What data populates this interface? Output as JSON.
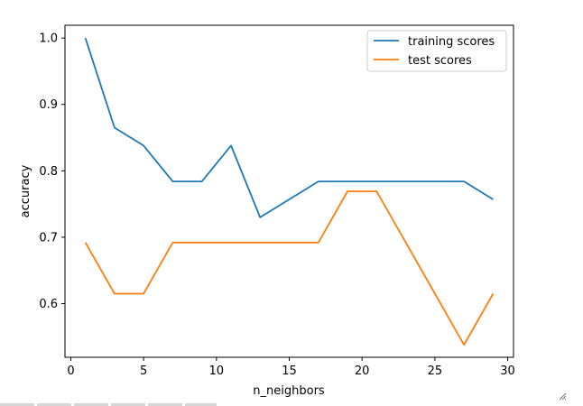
{
  "chart_data": {
    "type": "line",
    "x": [
      1,
      3,
      5,
      7,
      9,
      11,
      13,
      15,
      17,
      19,
      21,
      23,
      25,
      27,
      29
    ],
    "series": [
      {
        "name": "training scores",
        "color": "#1f77b4",
        "values": [
          1.0,
          0.865,
          0.838,
          0.784,
          0.784,
          0.838,
          0.73,
          0.757,
          0.784,
          0.784,
          0.784,
          0.784,
          0.784,
          0.784,
          0.757
        ]
      },
      {
        "name": "test scores",
        "color": "#ff7f0e",
        "values": [
          0.692,
          0.615,
          0.615,
          0.692,
          0.692,
          0.692,
          0.692,
          0.692,
          0.692,
          0.769,
          0.769,
          0.692,
          0.615,
          0.538,
          0.615
        ]
      }
    ],
    "xlabel": "n_neighbors",
    "ylabel": "accuracy",
    "xlim": [
      -0.4,
      30.4
    ],
    "ylim": [
      0.5192,
      1.0192
    ],
    "xticks": [
      0,
      5,
      10,
      15,
      20,
      25,
      30
    ],
    "yticks": [
      0.6,
      0.7,
      0.8,
      0.9,
      1.0
    ],
    "xtick_labels": [
      "0",
      "5",
      "10",
      "15",
      "20",
      "25",
      "30"
    ],
    "ytick_labels": [
      "0.6",
      "0.7",
      "0.8",
      "0.9",
      "1.0"
    ],
    "legend_position": "top-right",
    "grid": false
  }
}
